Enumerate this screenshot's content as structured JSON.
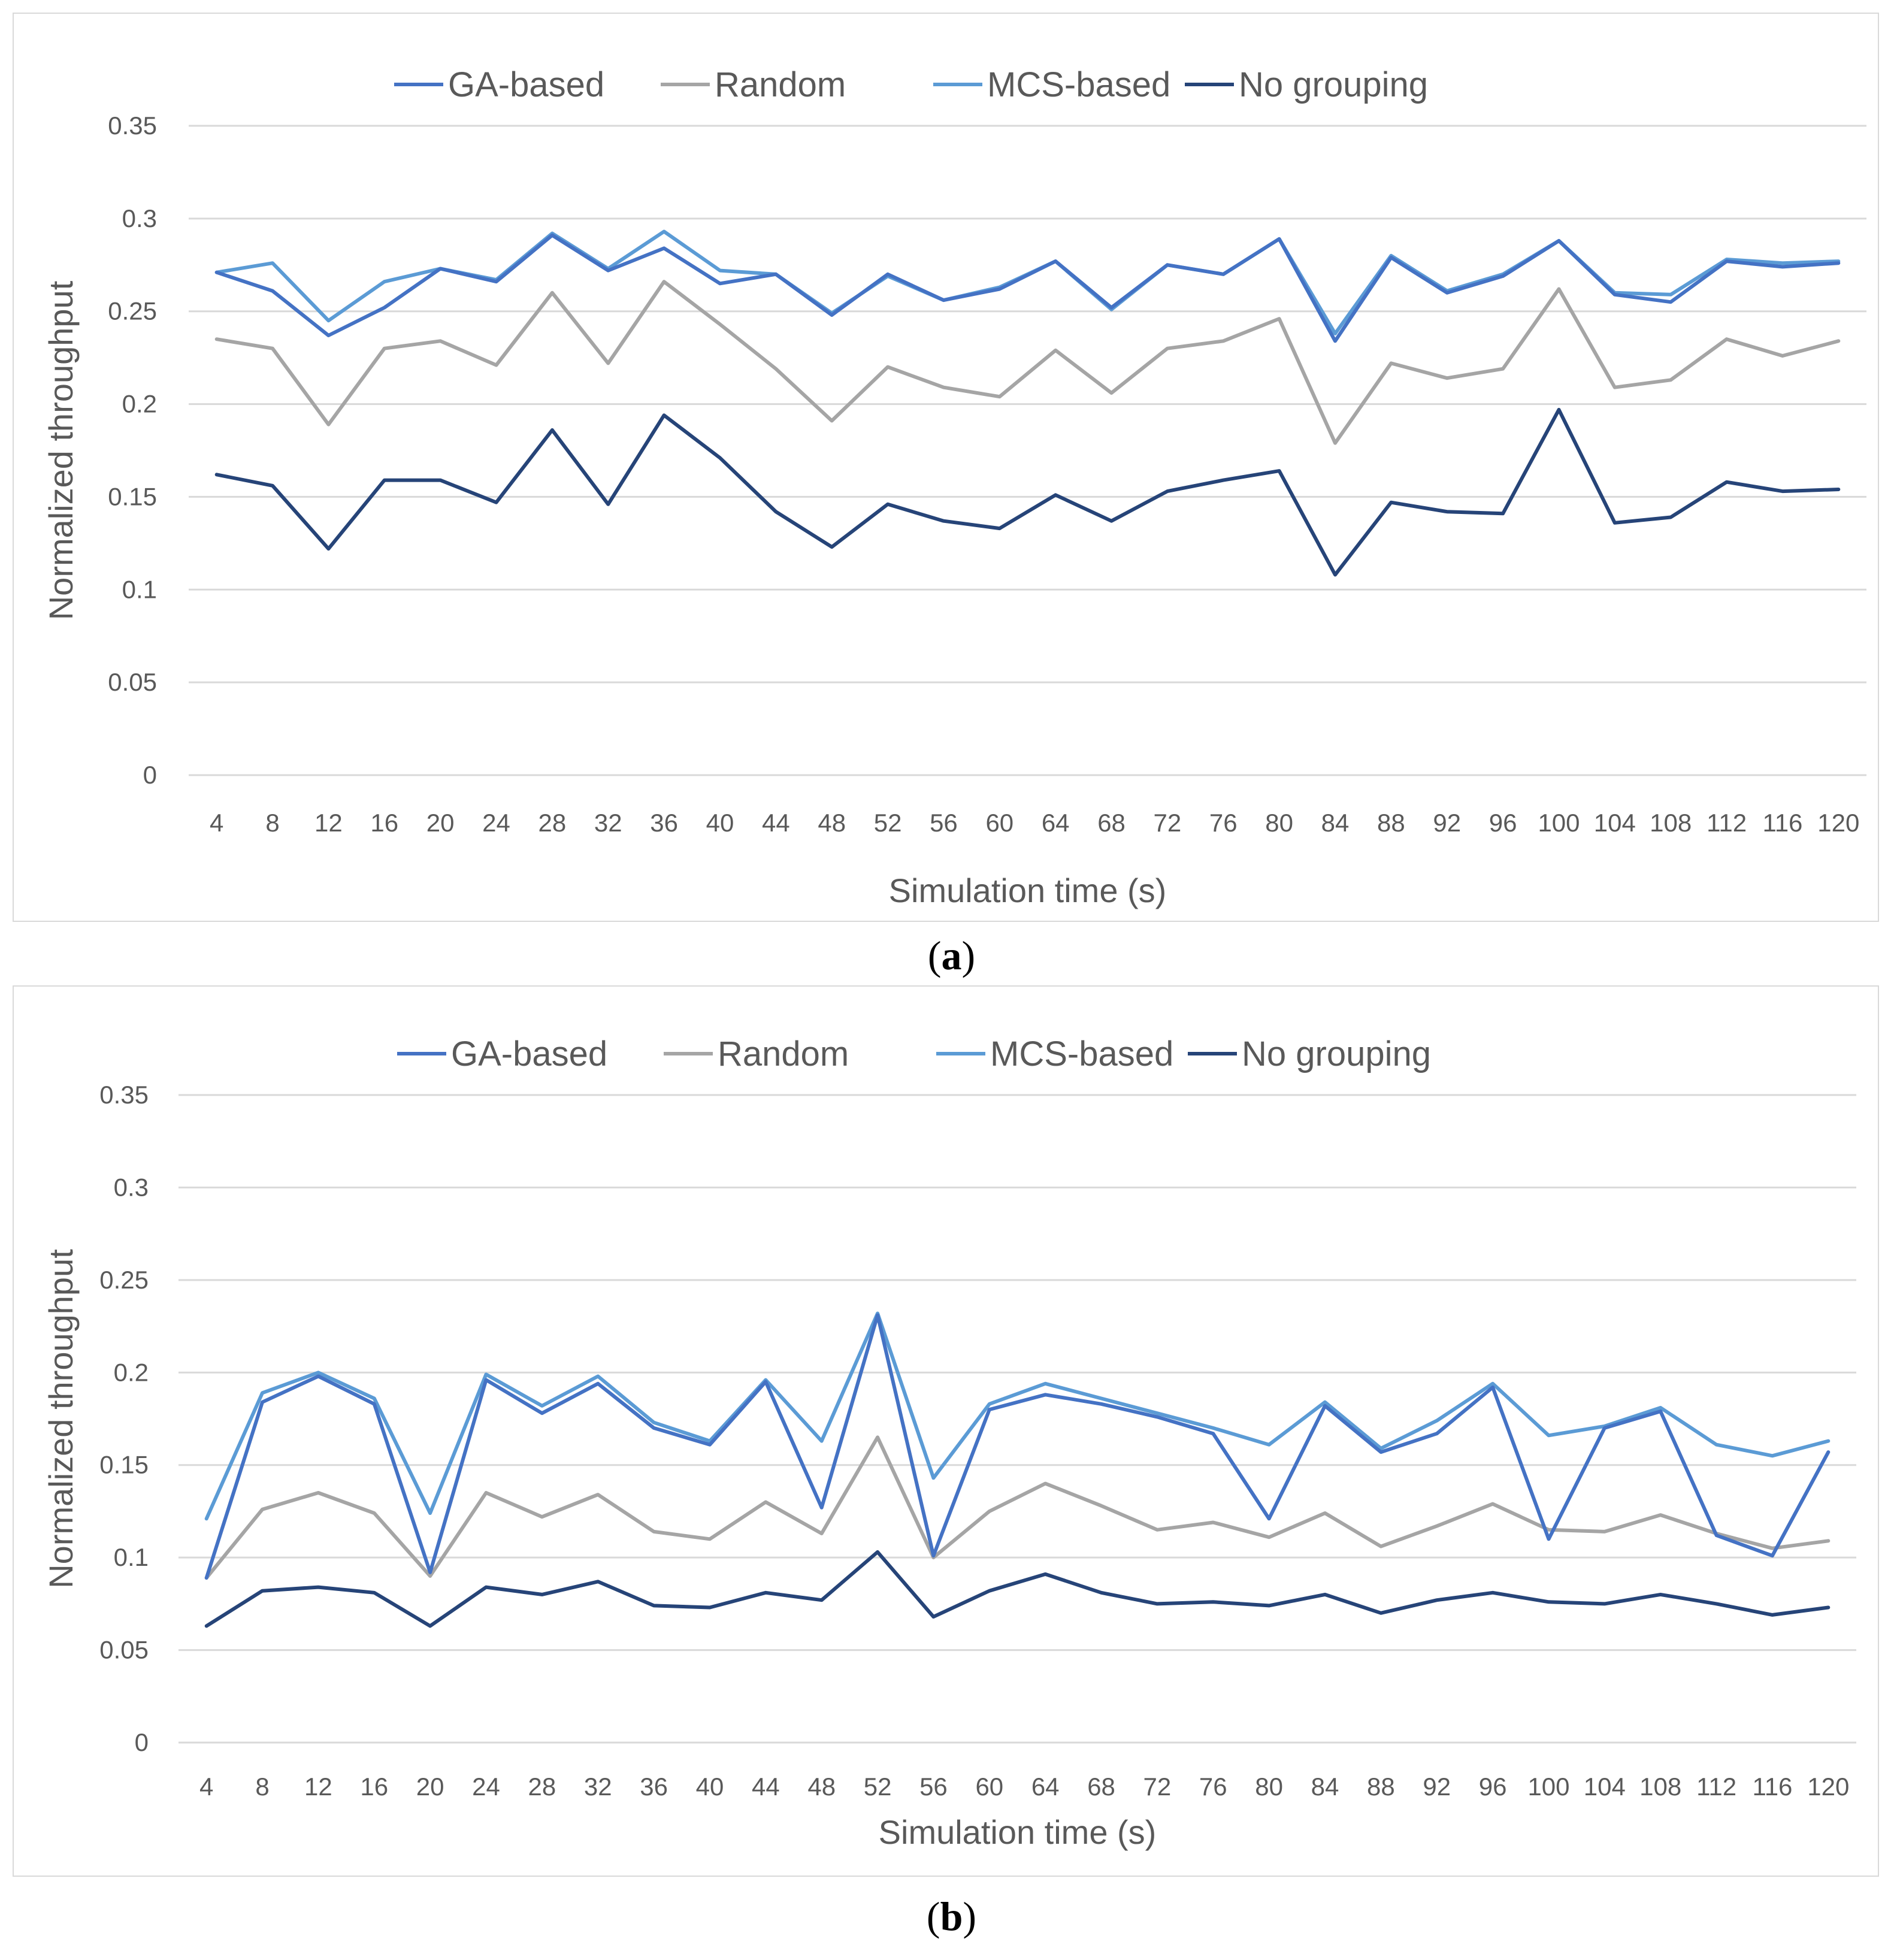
{
  "colors": {
    "ga": "#4472c4",
    "random": "#a5a5a5",
    "mcs": "#5b9bd5",
    "nogroup": "#264478",
    "grid": "#d9d9d9",
    "text": "#595959"
  },
  "chart_data": [
    {
      "type": "line",
      "panel": "a",
      "caption": "a",
      "title": "",
      "xlabel": "Simulation time (s)",
      "ylabel": "Normalized throughput",
      "ylim": [
        0,
        0.35
      ],
      "yticks": [
        "0",
        "0.05",
        "0.1",
        "0.15",
        "0.2",
        "0.25",
        "0.3",
        "0.35"
      ],
      "categories": [
        "4",
        "8",
        "12",
        "16",
        "20",
        "24",
        "28",
        "32",
        "36",
        "40",
        "44",
        "48",
        "52",
        "56",
        "60",
        "64",
        "68",
        "72",
        "76",
        "80",
        "84",
        "88",
        "92",
        "96",
        "100",
        "104",
        "108",
        "112",
        "116",
        "120"
      ],
      "legend_position": "top-center",
      "series": [
        {
          "name": "GA-based",
          "key": "ga",
          "values": [
            0.271,
            0.261,
            0.237,
            0.252,
            0.273,
            0.266,
            0.291,
            0.272,
            0.284,
            0.265,
            0.27,
            0.248,
            0.27,
            0.256,
            0.262,
            0.277,
            0.252,
            0.275,
            0.27,
            0.289,
            0.234,
            0.279,
            0.26,
            0.269,
            0.288,
            0.259,
            0.255,
            0.277,
            0.274,
            0.276
          ]
        },
        {
          "name": "Random",
          "key": "random",
          "values": [
            0.235,
            0.23,
            0.189,
            0.23,
            0.234,
            0.221,
            0.26,
            0.222,
            0.266,
            0.243,
            0.219,
            0.191,
            0.22,
            0.209,
            0.204,
            0.229,
            0.206,
            0.23,
            0.234,
            0.246,
            0.179,
            0.222,
            0.214,
            0.219,
            0.262,
            0.209,
            0.213,
            0.235,
            0.226,
            0.234
          ]
        },
        {
          "name": "MCS-based",
          "key": "mcs",
          "values": [
            0.271,
            0.276,
            0.245,
            0.266,
            0.273,
            0.267,
            0.292,
            0.273,
            0.293,
            0.272,
            0.27,
            0.249,
            0.269,
            0.256,
            0.263,
            0.277,
            0.251,
            0.275,
            0.27,
            0.289,
            0.238,
            0.28,
            0.261,
            0.27,
            0.288,
            0.26,
            0.259,
            0.278,
            0.276,
            0.277
          ]
        },
        {
          "name": "No grouping",
          "key": "nogroup",
          "values": [
            0.162,
            0.156,
            0.122,
            0.159,
            0.159,
            0.147,
            0.186,
            0.146,
            0.194,
            0.171,
            0.142,
            0.123,
            0.146,
            0.137,
            0.133,
            0.151,
            0.137,
            0.153,
            0.159,
            0.164,
            0.108,
            0.147,
            0.142,
            0.141,
            0.197,
            0.136,
            0.139,
            0.158,
            0.153,
            0.154
          ]
        }
      ]
    },
    {
      "type": "line",
      "panel": "b",
      "caption": "b",
      "title": "",
      "xlabel": "Simulation time (s)",
      "ylabel": "Normalized throughput",
      "ylim": [
        0,
        0.35
      ],
      "yticks": [
        "0",
        "0.05",
        "0.1",
        "0.15",
        "0.2",
        "0.25",
        "0.3",
        "0.35"
      ],
      "categories": [
        "4",
        "8",
        "12",
        "16",
        "20",
        "24",
        "28",
        "32",
        "36",
        "40",
        "44",
        "48",
        "52",
        "56",
        "60",
        "64",
        "68",
        "72",
        "76",
        "80",
        "84",
        "88",
        "92",
        "96",
        "100",
        "104",
        "108",
        "112",
        "116",
        "120"
      ],
      "legend_position": "top-center",
      "series": [
        {
          "name": "GA-based",
          "key": "ga",
          "values": [
            0.089,
            0.184,
            0.198,
            0.183,
            0.092,
            0.196,
            0.178,
            0.194,
            0.17,
            0.161,
            0.195,
            0.127,
            0.231,
            0.101,
            0.18,
            0.188,
            0.183,
            0.176,
            0.167,
            0.121,
            0.182,
            0.157,
            0.167,
            0.192,
            0.11,
            0.17,
            0.179,
            0.112,
            0.101,
            0.157
          ]
        },
        {
          "name": "Random",
          "key": "random",
          "values": [
            0.089,
            0.126,
            0.135,
            0.124,
            0.09,
            0.135,
            0.122,
            0.134,
            0.114,
            0.11,
            0.13,
            0.113,
            0.165,
            0.1,
            0.125,
            0.14,
            0.128,
            0.115,
            0.119,
            0.111,
            0.124,
            0.106,
            0.117,
            0.129,
            0.115,
            0.114,
            0.123,
            0.113,
            0.105,
            0.109
          ]
        },
        {
          "name": "MCS-based",
          "key": "mcs",
          "values": [
            0.121,
            0.189,
            0.2,
            0.186,
            0.124,
            0.199,
            0.182,
            0.198,
            0.173,
            0.163,
            0.196,
            0.163,
            0.232,
            0.143,
            0.183,
            0.194,
            0.186,
            0.178,
            0.17,
            0.161,
            0.184,
            0.159,
            0.174,
            0.194,
            0.166,
            0.171,
            0.181,
            0.161,
            0.155,
            0.163
          ]
        },
        {
          "name": "No grouping",
          "key": "nogroup",
          "values": [
            0.063,
            0.082,
            0.084,
            0.081,
            0.063,
            0.084,
            0.08,
            0.087,
            0.074,
            0.073,
            0.081,
            0.077,
            0.103,
            0.068,
            0.082,
            0.091,
            0.081,
            0.075,
            0.076,
            0.074,
            0.08,
            0.07,
            0.077,
            0.081,
            0.076,
            0.075,
            0.08,
            0.075,
            0.069,
            0.073
          ]
        }
      ]
    }
  ]
}
